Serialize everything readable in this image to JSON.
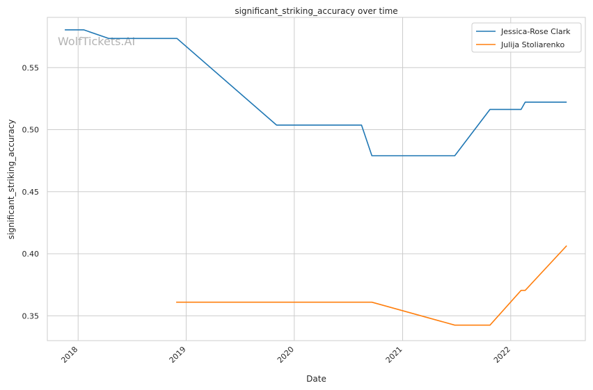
{
  "chart_data": {
    "type": "line",
    "title": "significant_striking_accuracy over time",
    "xlabel": "Date",
    "ylabel": "significant_striking_accuracy",
    "watermark": "WolfTickets.AI",
    "xlim": [
      "2017-09-19",
      "2022-09-10"
    ],
    "ylim": [
      0.33,
      0.5905
    ],
    "x_ticks": [
      {
        "date": "2018-01-01",
        "label": "2018"
      },
      {
        "date": "2019-01-01",
        "label": "2019"
      },
      {
        "date": "2020-01-01",
        "label": "2020"
      },
      {
        "date": "2021-01-01",
        "label": "2021"
      },
      {
        "date": "2022-01-01",
        "label": "2022"
      }
    ],
    "y_ticks": [
      {
        "value": 0.35,
        "label": "0.35"
      },
      {
        "value": 0.4,
        "label": "0.40"
      },
      {
        "value": 0.45,
        "label": "0.45"
      },
      {
        "value": 0.5,
        "label": "0.50"
      },
      {
        "value": 0.55,
        "label": "0.55"
      }
    ],
    "grid": true,
    "legend_position": "top-right",
    "series": [
      {
        "name": "Jessica-Rose Clark",
        "color": "#1f77b4",
        "points": [
          {
            "x": "2017-11-17",
            "y": 0.5805
          },
          {
            "x": "2018-01-20",
            "y": 0.5805
          },
          {
            "x": "2018-04-14",
            "y": 0.5735
          },
          {
            "x": "2018-12-01",
            "y": 0.5735
          },
          {
            "x": "2019-11-02",
            "y": 0.5037
          },
          {
            "x": "2020-08-15",
            "y": 0.5037
          },
          {
            "x": "2020-09-19",
            "y": 0.479
          },
          {
            "x": "2021-06-26",
            "y": 0.479
          },
          {
            "x": "2021-10-23",
            "y": 0.5163
          },
          {
            "x": "2022-02-05",
            "y": 0.5163
          },
          {
            "x": "2022-02-19",
            "y": 0.5222
          },
          {
            "x": "2022-07-09",
            "y": 0.5222
          }
        ]
      },
      {
        "name": "Julija Stoliarenko",
        "color": "#ff7f0e",
        "points": [
          {
            "x": "2018-11-28",
            "y": 0.361
          },
          {
            "x": "2020-09-19",
            "y": 0.361
          },
          {
            "x": "2021-06-26",
            "y": 0.3425
          },
          {
            "x": "2021-10-23",
            "y": 0.3425
          },
          {
            "x": "2022-02-05",
            "y": 0.3705
          },
          {
            "x": "2022-02-19",
            "y": 0.3705
          },
          {
            "x": "2022-07-09",
            "y": 0.4065
          }
        ]
      }
    ]
  }
}
